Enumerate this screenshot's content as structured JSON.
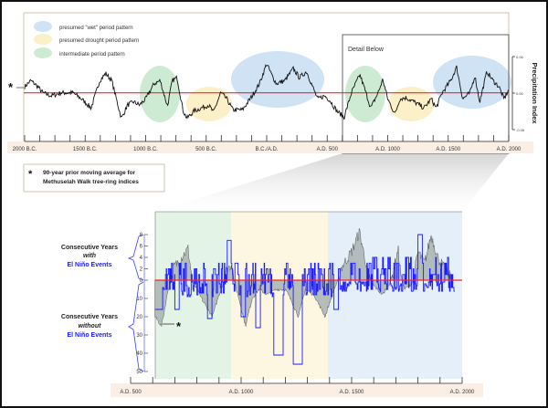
{
  "chart_data": [
    {
      "type": "line",
      "title": "",
      "ylabel": "Precipitation Index",
      "ylim": [
        -0.06,
        0.06
      ],
      "yticks": [
        "0.06",
        "0.00",
        "-0.06"
      ],
      "xlim": [
        -2000,
        2000
      ],
      "xtick_labels": [
        "2000 B.C.",
        "1500 B.C.",
        "1000 B.C.",
        "500 B.C.",
        "B.C./A.D.",
        "A.D. 500",
        "A.D. 1000",
        "A.D. 1500",
        "A.D. 2000"
      ],
      "zero_line_color": "#ff2020",
      "detail_label": "Detail Below",
      "legend": [
        {
          "label": "presumed \"wet\" period pattern",
          "color": "#cfe3f5"
        },
        {
          "label": "presumed drought period pattern",
          "color": "#fbf0c8"
        },
        {
          "label": "intermediate period pattern",
          "color": "#cdebd3"
        }
      ],
      "highlights": [
        {
          "type": "wet",
          "from": -400,
          "to": 400
        },
        {
          "type": "wet",
          "from": 1500,
          "to": 2000
        },
        {
          "type": "intermediate",
          "from": -1000,
          "to": -650
        },
        {
          "type": "intermediate",
          "from": 600,
          "to": 950
        },
        {
          "type": "drought",
          "from": -600,
          "to": -200
        },
        {
          "type": "drought",
          "from": 1000,
          "to": 1400
        }
      ],
      "series": [
        {
          "name": "90-year prior moving average",
          "points": [
            [
              -2000,
              0.01
            ],
            [
              -1950,
              0.02
            ],
            [
              -1900,
              0.012
            ],
            [
              -1850,
              0.0
            ],
            [
              -1780,
              -0.005
            ],
            [
              -1700,
              0.0
            ],
            [
              -1600,
              0.0
            ],
            [
              -1530,
              -0.01
            ],
            [
              -1450,
              -0.025
            ],
            [
              -1380,
              0.02
            ],
            [
              -1330,
              0.032
            ],
            [
              -1280,
              0.02
            ],
            [
              -1230,
              -0.02
            ],
            [
              -1200,
              -0.042
            ],
            [
              -1150,
              -0.02
            ],
            [
              -1100,
              -0.015
            ],
            [
              -1050,
              -0.02
            ],
            [
              -1000,
              -0.01
            ],
            [
              -930,
              0.015
            ],
            [
              -880,
              0.02
            ],
            [
              -820,
              -0.022
            ],
            [
              -780,
              0.02
            ],
            [
              -740,
              0.025
            ],
            [
              -690,
              -0.03
            ],
            [
              -660,
              -0.042
            ],
            [
              -600,
              -0.03
            ],
            [
              -540,
              -0.025
            ],
            [
              -480,
              -0.02
            ],
            [
              -440,
              -0.032
            ],
            [
              -380,
              0.0
            ],
            [
              -330,
              -0.01
            ],
            [
              -280,
              -0.028
            ],
            [
              -200,
              -0.028
            ],
            [
              -120,
              -0.005
            ],
            [
              -60,
              0.015
            ],
            [
              0,
              0.048
            ],
            [
              40,
              0.03
            ],
            [
              80,
              0.015
            ],
            [
              150,
              0.02
            ],
            [
              220,
              0.04
            ],
            [
              270,
              0.025
            ],
            [
              330,
              0.035
            ],
            [
              380,
              0.01
            ],
            [
              420,
              -0.01
            ],
            [
              480,
              -0.005
            ],
            [
              520,
              -0.012
            ],
            [
              580,
              -0.03
            ],
            [
              640,
              -0.04
            ],
            [
              700,
              0.0
            ],
            [
              770,
              0.03
            ],
            [
              820,
              0.0
            ],
            [
              860,
              -0.025
            ],
            [
              920,
              0.0
            ],
            [
              960,
              0.022
            ],
            [
              1000,
              -0.01
            ],
            [
              1060,
              -0.035
            ],
            [
              1100,
              -0.01
            ],
            [
              1150,
              -0.008
            ],
            [
              1220,
              -0.015
            ],
            [
              1300,
              -0.025
            ],
            [
              1360,
              -0.01
            ],
            [
              1400,
              -0.025
            ],
            [
              1450,
              0.0
            ],
            [
              1520,
              0.02
            ],
            [
              1570,
              0.042
            ],
            [
              1620,
              -0.01
            ],
            [
              1680,
              0.0
            ],
            [
              1720,
              0.028
            ],
            [
              1760,
              -0.015
            ],
            [
              1820,
              0.035
            ],
            [
              1870,
              0.02
            ],
            [
              1920,
              0.01
            ],
            [
              1960,
              -0.01
            ],
            [
              2000,
              0.005
            ]
          ]
        }
      ]
    },
    {
      "type": "line",
      "title": "",
      "xlim": [
        500,
        2000
      ],
      "xtick_labels": [
        "A.D. 500",
        "A.D. 1000",
        "A.D. 1500",
        "A.D. 2000"
      ],
      "ytick_labels_with": [
        "8",
        "6",
        "4",
        "2",
        "0"
      ],
      "ytick_labels_without": [
        "10",
        "20",
        "30",
        "40",
        "50"
      ],
      "ylabel_top": {
        "line1": "Consecutive Years",
        "line2": "with",
        "line3": "El Niño Events"
      },
      "ylabel_bottom": {
        "line1": "Consecutive Years",
        "line2": "without",
        "line3": "El Niño Events"
      },
      "shading": [
        {
          "type": "intermediate",
          "from": 610,
          "to": 950,
          "color": "#e3f3e6"
        },
        {
          "type": "drought",
          "from": 950,
          "to": 1390,
          "color": "#fdf7e1"
        },
        {
          "type": "wet",
          "from": 1390,
          "to": 1990,
          "color": "#e4eff9"
        }
      ],
      "series": [
        {
          "name": "moving average (gray area)",
          "color": "#9aa5a5",
          "points": [
            [
              610,
              -20
            ],
            [
              640,
              -25
            ],
            [
              670,
              -5
            ],
            [
              690,
              2
            ],
            [
              720,
              3.5
            ],
            [
              760,
              5.5
            ],
            [
              790,
              -3
            ],
            [
              830,
              -12
            ],
            [
              870,
              -20
            ],
            [
              900,
              -8
            ],
            [
              930,
              1.5
            ],
            [
              960,
              3
            ],
            [
              990,
              -10
            ],
            [
              1020,
              -25
            ],
            [
              1050,
              -10
            ],
            [
              1080,
              -5
            ],
            [
              1120,
              -8
            ],
            [
              1160,
              -5
            ],
            [
              1200,
              -5
            ],
            [
              1230,
              -12
            ],
            [
              1260,
              -20
            ],
            [
              1290,
              -5
            ],
            [
              1330,
              -8
            ],
            [
              1380,
              -20
            ],
            [
              1420,
              -5
            ],
            [
              1450,
              2
            ],
            [
              1500,
              5
            ],
            [
              1535,
              8.5
            ],
            [
              1570,
              2
            ],
            [
              1600,
              -3
            ],
            [
              1640,
              -8
            ],
            [
              1680,
              0
            ],
            [
              1710,
              5.5
            ],
            [
              1740,
              -5
            ],
            [
              1770,
              -2
            ],
            [
              1800,
              5
            ],
            [
              1830,
              3
            ],
            [
              1860,
              8
            ],
            [
              1890,
              4
            ],
            [
              1920,
              2
            ],
            [
              1960,
              0
            ]
          ]
        },
        {
          "name": "El Niño event runs (blue)",
          "color": "#1a1aff",
          "wells": [
            [
              612,
              645,
              -16
            ],
            [
              700,
              720,
              -16
            ],
            [
              848,
              868,
              -21
            ],
            [
              937,
              955,
              7
            ],
            [
              1000,
              1020,
              -20
            ],
            [
              1066,
              1087,
              -26
            ],
            [
              1148,
              1190,
              -41
            ],
            [
              1236,
              1277,
              -46
            ],
            [
              1420,
              1440,
              -16
            ],
            [
              1800,
              1820,
              8
            ]
          ]
        }
      ]
    }
  ],
  "note": {
    "line1": "90-year prior moving average for",
    "line2": "Methuselah Walk tree-ring indices"
  }
}
